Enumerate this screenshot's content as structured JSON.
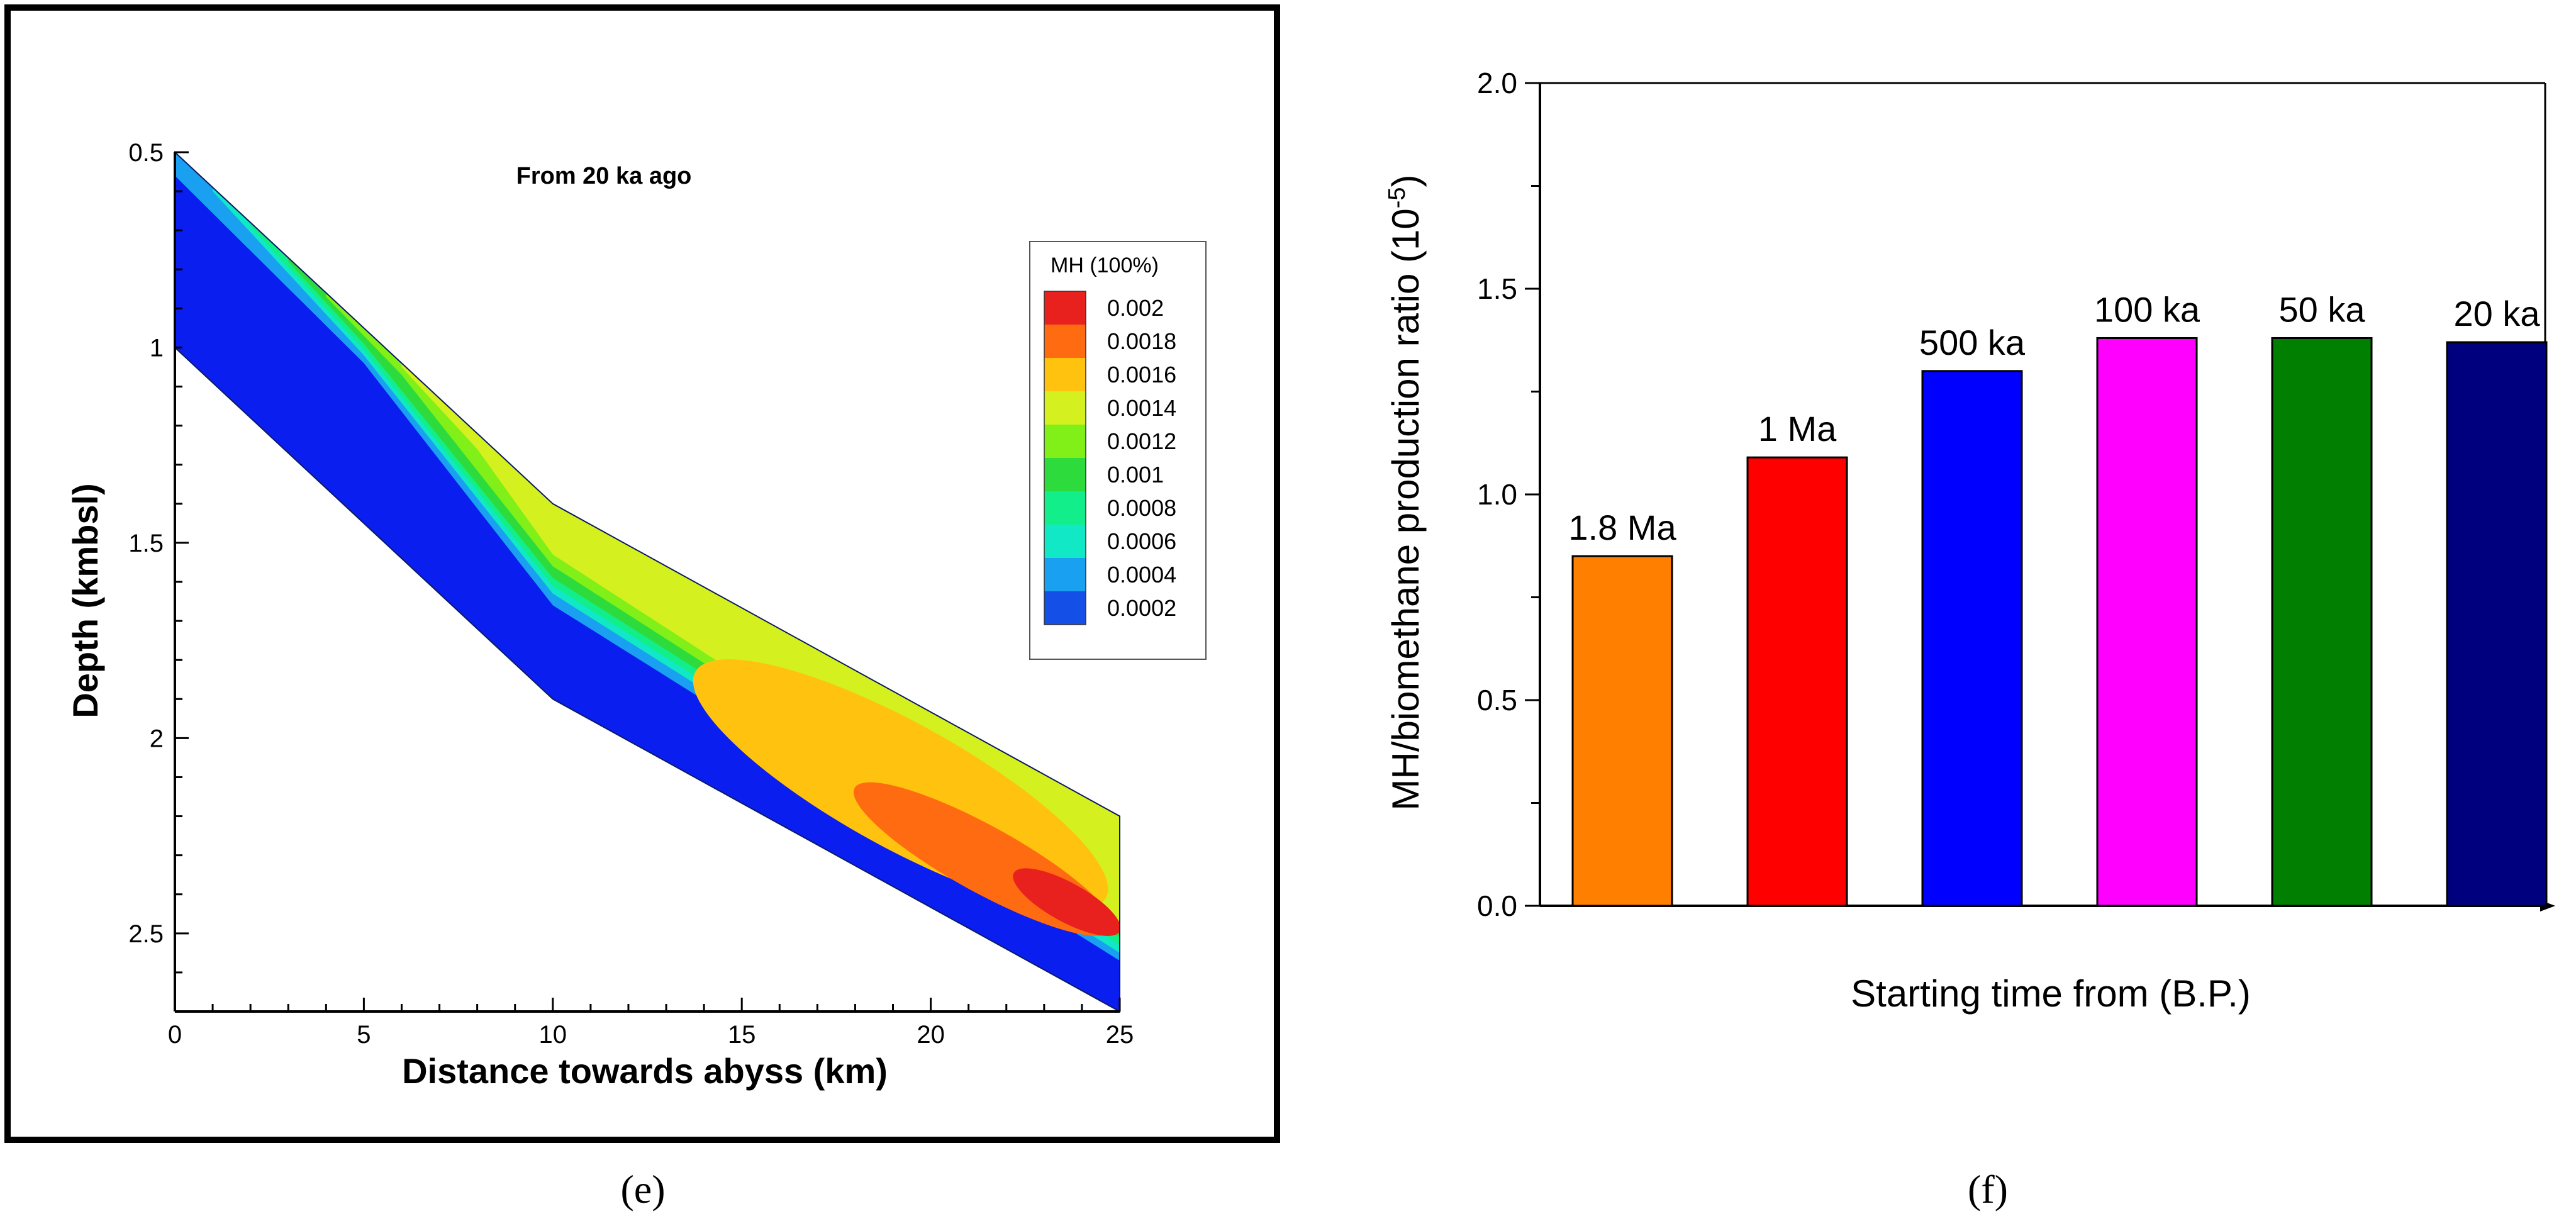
{
  "chart_data": [
    {
      "type": "heatmap",
      "panel_label": "(e)",
      "title": "From 20 ka ago",
      "xlabel": "Distance towards abyss (km)",
      "ylabel": "Depth (kmbsl)",
      "xlim": [
        0,
        25
      ],
      "ylim": [
        0.5,
        2.7
      ],
      "x_ticks": [
        "0",
        "5",
        "10",
        "15",
        "20",
        "25"
      ],
      "y_ticks": [
        "0.5",
        "1",
        "1.5",
        "2",
        "2.5"
      ],
      "domain": {
        "top_boundary": [
          [
            0,
            0.5
          ],
          [
            10,
            1.4
          ],
          [
            25,
            2.2
          ]
        ],
        "bottom_boundary": [
          [
            0,
            1.0
          ],
          [
            10,
            1.9
          ],
          [
            25,
            2.7
          ]
        ]
      },
      "legend": {
        "title": "MH (100%)",
        "entries": [
          {
            "label": "0.002",
            "color": "#e8201e"
          },
          {
            "label": "0.0018",
            "color": "#ff6b10"
          },
          {
            "label": "0.0016",
            "color": "#ffc20e"
          },
          {
            "label": "0.0014",
            "color": "#d4f01e"
          },
          {
            "label": "0.0012",
            "color": "#80f018"
          },
          {
            "label": "0.001",
            "color": "#2ddc3c"
          },
          {
            "label": "0.0008",
            "color": "#12ee8a"
          },
          {
            "label": "0.0006",
            "color": "#10e8c6"
          },
          {
            "label": "0.0004",
            "color": "#1aa0f0"
          },
          {
            "label": "0.0002",
            "color": "#1450e8"
          }
        ],
        "base_color": "#0a1ef0"
      }
    },
    {
      "type": "bar",
      "panel_label": "(f)",
      "title": "",
      "xlabel": "Starting time from (B.P.)",
      "ylabel": "MH/biomethane production ratio (10",
      "ylabel_sup": "-5",
      "ylabel_close": ")",
      "ylim": [
        0,
        2.0
      ],
      "y_ticks": [
        "0.0",
        "0.5",
        "1.0",
        "1.5",
        "2.0"
      ],
      "categories": [
        "1.8 Ma",
        "1 Ma",
        "500 ka",
        "100 ka",
        "50 ka",
        "20 ka"
      ],
      "values": [
        0.85,
        1.09,
        1.3,
        1.38,
        1.38,
        1.37
      ],
      "colors": [
        "#ff8000",
        "#ff0000",
        "#0000ff",
        "#ff00ff",
        "#007f00",
        "#00007f"
      ]
    }
  ]
}
